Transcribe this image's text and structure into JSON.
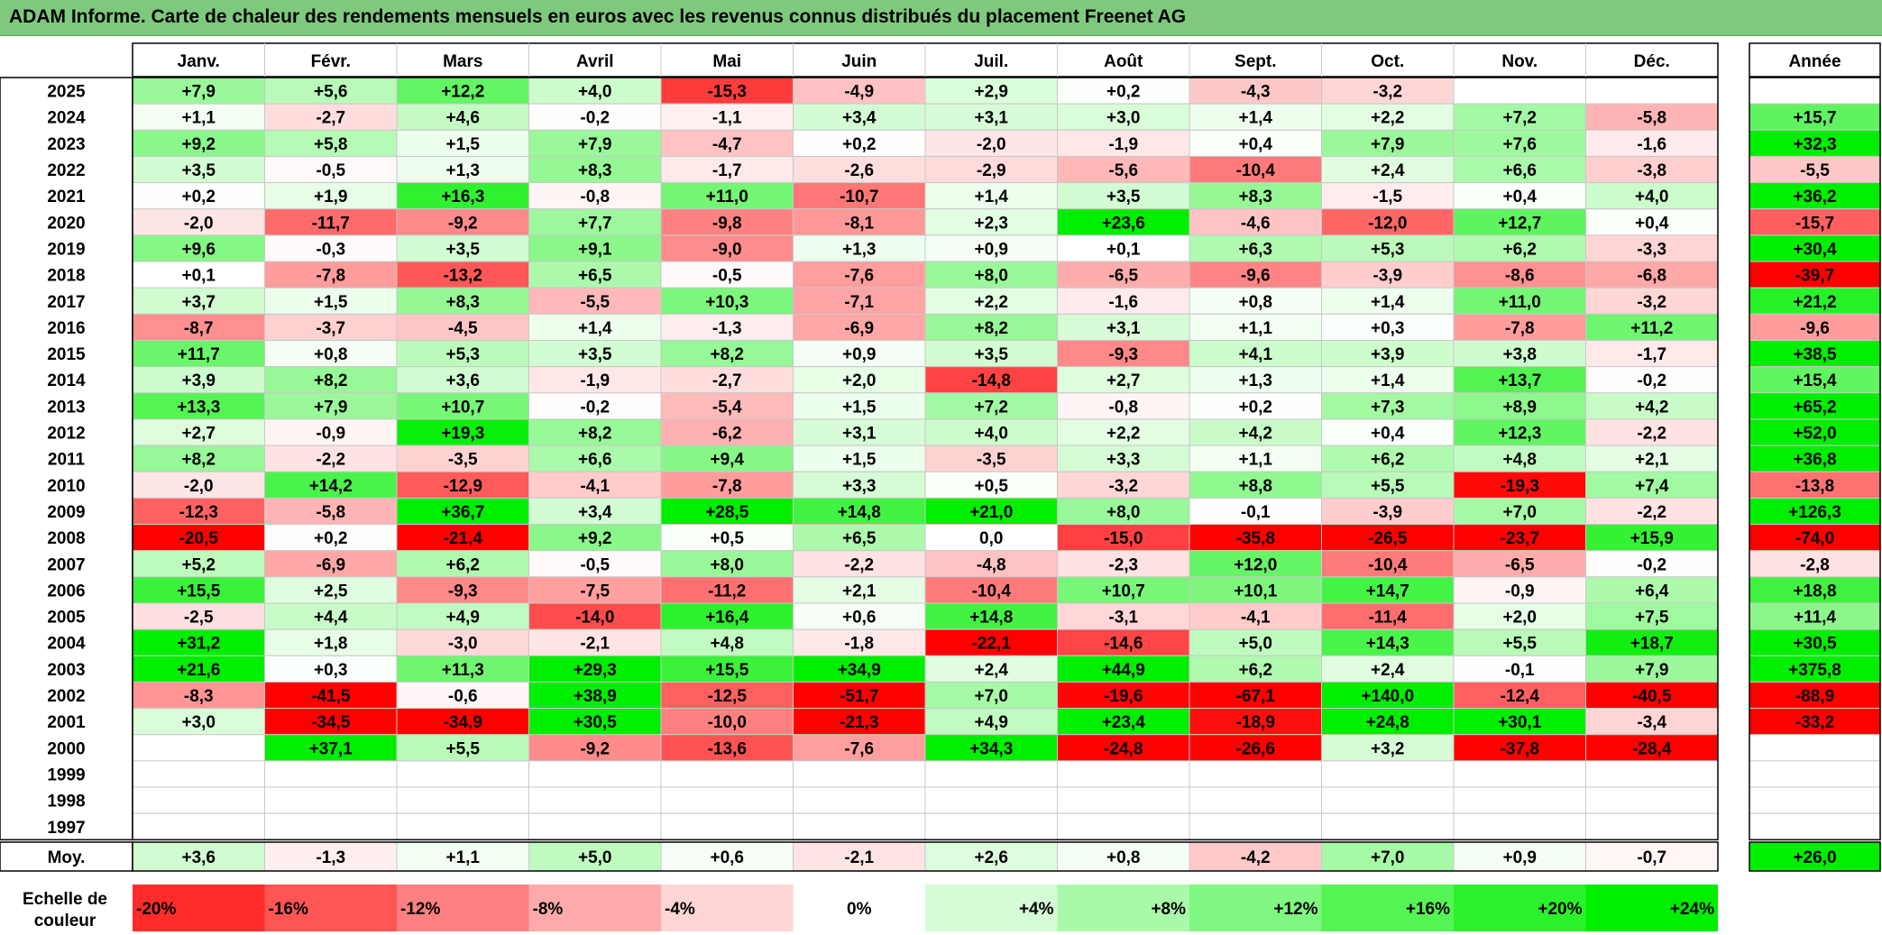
{
  "title": "ADAM Informe. Carte de chaleur des rendements mensuels en euros avec les revenus connus distribués du placement Freenet AG",
  "chart_data": {
    "type": "heatmap",
    "months": [
      "Janv.",
      "Févr.",
      "Mars",
      "Avril",
      "Mai",
      "Juin",
      "Juil.",
      "Août",
      "Sept.",
      "Oct.",
      "Nov.",
      "Déc."
    ],
    "year_header": "Année",
    "rows": [
      {
        "year": "2025",
        "values": [
          "+7,9",
          "+5,6",
          "+12,2",
          "+4,0",
          "-15,3",
          "-4,9",
          "+2,9",
          "+0,2",
          "-4,3",
          "-3,2",
          "",
          ""
        ],
        "annual": ""
      },
      {
        "year": "2024",
        "values": [
          "+1,1",
          "-2,7",
          "+4,6",
          "-0,2",
          "-1,1",
          "+3,4",
          "+3,1",
          "+3,0",
          "+1,4",
          "+2,2",
          "+7,2",
          "-5,8"
        ],
        "annual": "+15,7"
      },
      {
        "year": "2023",
        "values": [
          "+9,2",
          "+5,8",
          "+1,5",
          "+7,9",
          "-4,7",
          "+0,2",
          "-2,0",
          "-1,9",
          "+0,4",
          "+7,9",
          "+7,6",
          "-1,6"
        ],
        "annual": "+32,3"
      },
      {
        "year": "2022",
        "values": [
          "+3,5",
          "-0,5",
          "+1,3",
          "+8,3",
          "-1,7",
          "-2,6",
          "-2,9",
          "-5,6",
          "-10,4",
          "+2,4",
          "+6,6",
          "-3,8"
        ],
        "annual": "-5,5"
      },
      {
        "year": "2021",
        "values": [
          "+0,2",
          "+1,9",
          "+16,3",
          "-0,8",
          "+11,0",
          "-10,7",
          "+1,4",
          "+3,5",
          "+8,3",
          "-1,5",
          "+0,4",
          "+4,0"
        ],
        "annual": "+36,2"
      },
      {
        "year": "2020",
        "values": [
          "-2,0",
          "-11,7",
          "-9,2",
          "+7,7",
          "-9,8",
          "-8,1",
          "+2,3",
          "+23,6",
          "-4,6",
          "-12,0",
          "+12,7",
          "+0,4"
        ],
        "annual": "-15,7"
      },
      {
        "year": "2019",
        "values": [
          "+9,6",
          "-0,3",
          "+3,5",
          "+9,1",
          "-9,0",
          "+1,3",
          "+0,9",
          "+0,1",
          "+6,3",
          "+5,3",
          "+6,2",
          "-3,3"
        ],
        "annual": "+30,4"
      },
      {
        "year": "2018",
        "values": [
          "+0,1",
          "-7,8",
          "-13,2",
          "+6,5",
          "-0,5",
          "-7,6",
          "+8,0",
          "-6,5",
          "-9,6",
          "-3,9",
          "-8,6",
          "-6,8"
        ],
        "annual": "-39,7"
      },
      {
        "year": "2017",
        "values": [
          "+3,7",
          "+1,5",
          "+8,3",
          "-5,5",
          "+10,3",
          "-7,1",
          "+2,2",
          "-1,6",
          "+0,8",
          "+1,4",
          "+11,0",
          "-3,2"
        ],
        "annual": "+21,2"
      },
      {
        "year": "2016",
        "values": [
          "-8,7",
          "-3,7",
          "-4,5",
          "+1,4",
          "-1,3",
          "-6,9",
          "+8,2",
          "+3,1",
          "+1,1",
          "+0,3",
          "-7,8",
          "+11,2"
        ],
        "annual": "-9,6"
      },
      {
        "year": "2015",
        "values": [
          "+11,7",
          "+0,8",
          "+5,3",
          "+3,5",
          "+8,2",
          "+0,9",
          "+3,5",
          "-9,3",
          "+4,1",
          "+3,9",
          "+3,8",
          "-1,7"
        ],
        "annual": "+38,5"
      },
      {
        "year": "2014",
        "values": [
          "+3,9",
          "+8,2",
          "+3,6",
          "-1,9",
          "-2,7",
          "+2,0",
          "-14,8",
          "+2,7",
          "+1,3",
          "+1,4",
          "+13,7",
          "-0,2"
        ],
        "annual": "+15,4"
      },
      {
        "year": "2013",
        "values": [
          "+13,3",
          "+7,9",
          "+10,7",
          "-0,2",
          "-5,4",
          "+1,5",
          "+7,2",
          "-0,8",
          "+0,2",
          "+7,3",
          "+8,9",
          "+4,2"
        ],
        "annual": "+65,2"
      },
      {
        "year": "2012",
        "values": [
          "+2,7",
          "-0,9",
          "+19,3",
          "+8,2",
          "-6,2",
          "+3,1",
          "+4,0",
          "+2,2",
          "+4,2",
          "+0,4",
          "+12,3",
          "-2,2"
        ],
        "annual": "+52,0"
      },
      {
        "year": "2011",
        "values": [
          "+8,2",
          "-2,2",
          "-3,5",
          "+6,6",
          "+9,4",
          "+1,5",
          "-3,5",
          "+3,3",
          "+1,1",
          "+6,2",
          "+4,8",
          "+2,1"
        ],
        "annual": "+36,8"
      },
      {
        "year": "2010",
        "values": [
          "-2,0",
          "+14,2",
          "-12,9",
          "-4,1",
          "-7,8",
          "+3,3",
          "+0,5",
          "-3,2",
          "+8,8",
          "+5,5",
          "-19,3",
          "+7,4"
        ],
        "annual": "-13,8"
      },
      {
        "year": "2009",
        "values": [
          "-12,3",
          "-5,8",
          "+36,7",
          "+3,4",
          "+28,5",
          "+14,8",
          "+21,0",
          "+8,0",
          "-0,1",
          "-3,9",
          "+7,0",
          "-2,2"
        ],
        "annual": "+126,3"
      },
      {
        "year": "2008",
        "values": [
          "-20,5",
          "+0,2",
          "-21,4",
          "+9,2",
          "+0,5",
          "+6,5",
          "0,0",
          "-15,0",
          "-35,8",
          "-26,5",
          "-23,7",
          "+15,9"
        ],
        "annual": "-74,0"
      },
      {
        "year": "2007",
        "values": [
          "+5,2",
          "-6,9",
          "+6,2",
          "-0,5",
          "+8,0",
          "-2,2",
          "-4,8",
          "-2,3",
          "+12,0",
          "-10,4",
          "-6,5",
          "-0,2"
        ],
        "annual": "-2,8"
      },
      {
        "year": "2006",
        "values": [
          "+15,5",
          "+2,5",
          "-9,3",
          "-7,5",
          "-11,2",
          "+2,1",
          "-10,4",
          "+10,7",
          "+10,1",
          "+14,7",
          "-0,9",
          "+6,4"
        ],
        "annual": "+18,8"
      },
      {
        "year": "2005",
        "values": [
          "-2,5",
          "+4,4",
          "+4,9",
          "-14,0",
          "+16,4",
          "+0,6",
          "+14,8",
          "-3,1",
          "-4,1",
          "-11,4",
          "+2,0",
          "+7,5"
        ],
        "annual": "+11,4"
      },
      {
        "year": "2004",
        "values": [
          "+31,2",
          "+1,8",
          "-3,0",
          "-2,1",
          "+4,8",
          "-1,8",
          "-22,1",
          "-14,6",
          "+5,0",
          "+14,3",
          "+5,5",
          "+18,7"
        ],
        "annual": "+30,5"
      },
      {
        "year": "2003",
        "values": [
          "+21,6",
          "+0,3",
          "+11,3",
          "+29,3",
          "+15,5",
          "+34,9",
          "+2,4",
          "+44,9",
          "+6,2",
          "+2,4",
          "-0,1",
          "+7,9"
        ],
        "annual": "+375,8"
      },
      {
        "year": "2002",
        "values": [
          "-8,3",
          "-41,5",
          "-0,6",
          "+38,9",
          "-12,5",
          "-51,7",
          "+7,0",
          "-19,6",
          "-67,1",
          "+140,0",
          "-12,4",
          "-40,5"
        ],
        "annual": "-88,9"
      },
      {
        "year": "2001",
        "values": [
          "+3,0",
          "-34,5",
          "-34,9",
          "+30,5",
          "-10,0",
          "-21,3",
          "+4,9",
          "+23,4",
          "-18,9",
          "+24,8",
          "+30,1",
          "-3,4"
        ],
        "annual": "-33,2"
      },
      {
        "year": "2000",
        "values": [
          "",
          "+37,1",
          "+5,5",
          "-9,2",
          "-13,6",
          "-7,6",
          "+34,3",
          "-24,8",
          "-26,6",
          "+3,2",
          "-37,8",
          "-28,4"
        ],
        "annual": ""
      },
      {
        "year": "1999",
        "values": [
          "",
          "",
          "",
          "",
          "",
          "",
          "",
          "",
          "",
          "",
          "",
          ""
        ],
        "annual": ""
      },
      {
        "year": "1998",
        "values": [
          "",
          "",
          "",
          "",
          "",
          "",
          "",
          "",
          "",
          "",
          "",
          ""
        ],
        "annual": ""
      },
      {
        "year": "1997",
        "values": [
          "",
          "",
          "",
          "",
          "",
          "",
          "",
          "",
          "",
          "",
          "",
          ""
        ],
        "annual": ""
      }
    ],
    "average": {
      "label": "Moy.",
      "values": [
        "+3,6",
        "-1,3",
        "+1,1",
        "+5,0",
        "+0,6",
        "-2,1",
        "+2,6",
        "+0,8",
        "-4,2",
        "+7,0",
        "+0,9",
        "-0,7"
      ],
      "annual": "+26,0"
    },
    "scale": {
      "label_line1": "Echelle de",
      "label_line2": "couleur",
      "steps": [
        {
          "label": "-20%",
          "value": -20
        },
        {
          "label": "-16%",
          "value": -16
        },
        {
          "label": "-12%",
          "value": -12
        },
        {
          "label": "-8%",
          "value": -8
        },
        {
          "label": "-4%",
          "value": -4
        },
        {
          "label": "0%",
          "value": 0
        },
        {
          "label": "+4%",
          "value": 4
        },
        {
          "label": "+8%",
          "value": 8
        },
        {
          "label": "+12%",
          "value": 12
        },
        {
          "label": "+16%",
          "value": 16
        },
        {
          "label": "+20%",
          "value": 20
        },
        {
          "label": "+24%",
          "value": 24
        }
      ]
    },
    "colors": {
      "negative_max": "#ff0000",
      "neutral": "#ffffff",
      "positive_max": "#00ee00",
      "title_bar": "#7fc97f"
    }
  }
}
